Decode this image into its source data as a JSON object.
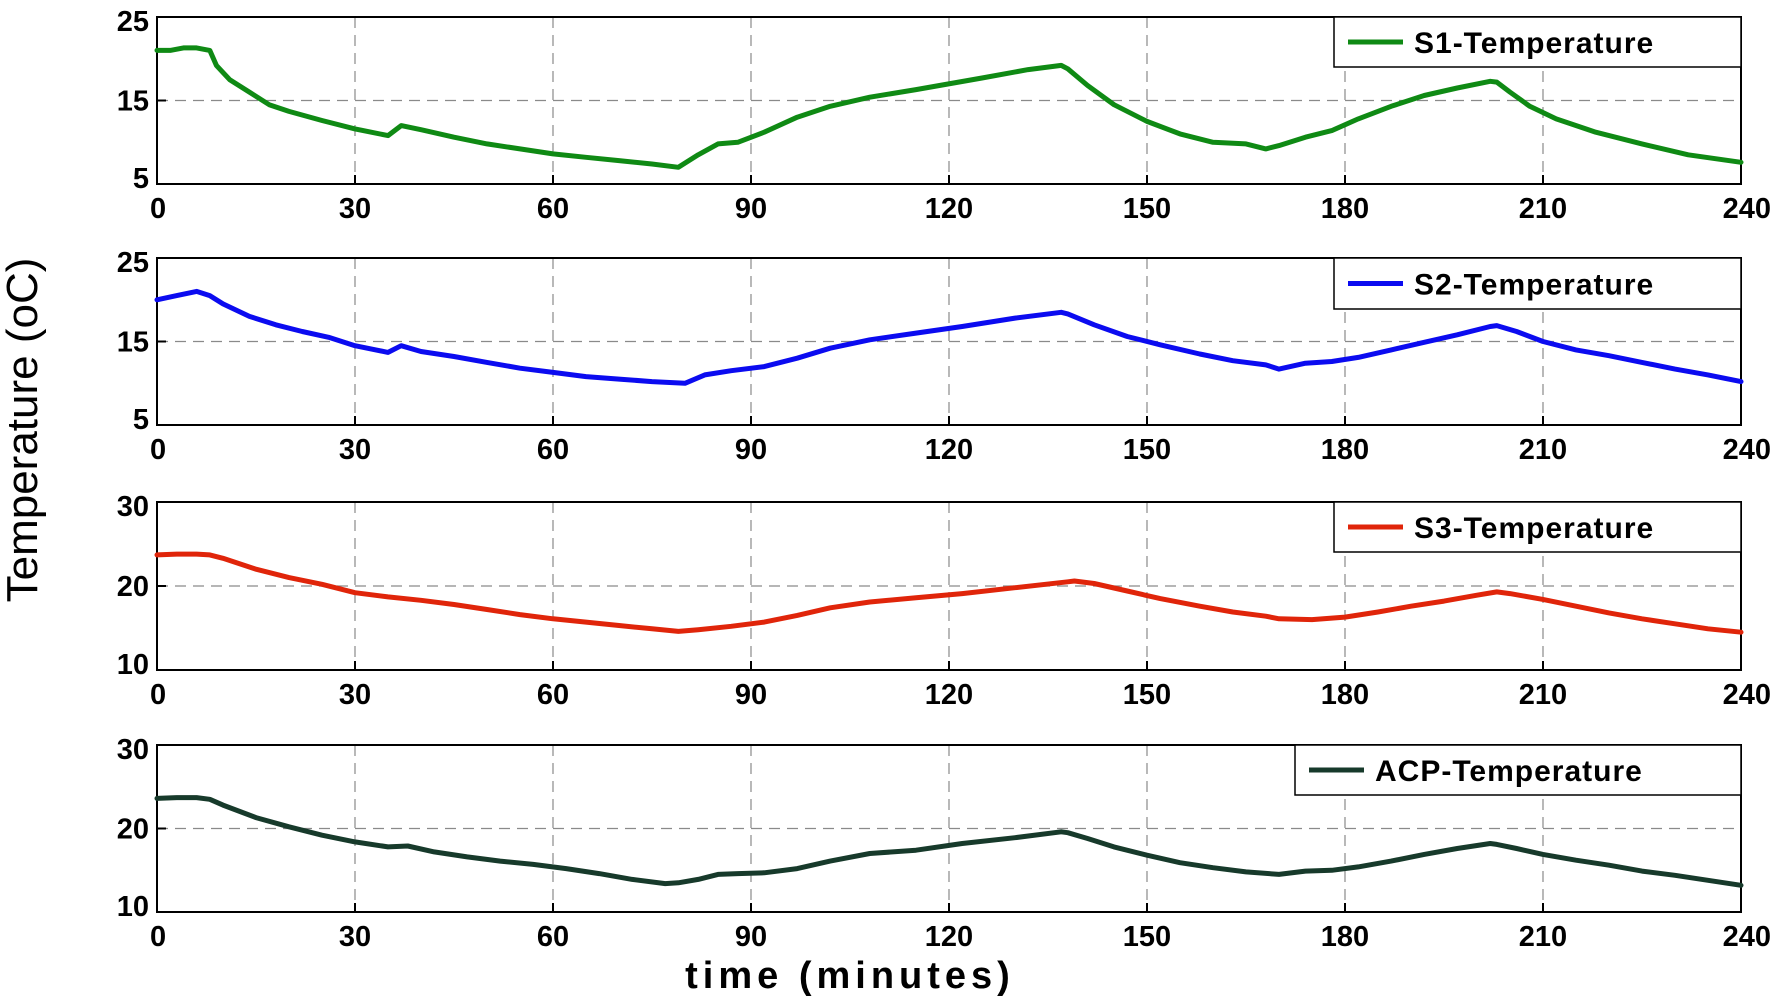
{
  "chart_data": {
    "type": "line",
    "xlabel": "time (minutes)",
    "ylabel": "Temperature (oC)",
    "shared_x_ticks": [
      0,
      30,
      60,
      90,
      120,
      150,
      180,
      210,
      240
    ],
    "panels": [
      {
        "legend": "S1-Temperature",
        "legend_position": "top-right",
        "color": "#0f8a14",
        "xlim": [
          0,
          240
        ],
        "ylim": [
          5,
          25
        ],
        "yticks": [
          5,
          15,
          25
        ],
        "grid": true,
        "series": [
          {
            "name": "S1-Temperature",
            "x": [
              0,
              2,
              4,
              6,
              8,
              9,
              11,
              14,
              17,
              20,
              25,
              30,
              35,
              37,
              40,
              45,
              50,
              55,
              60,
              65,
              70,
              75,
              79,
              82,
              85,
              88,
              92,
              97,
              102,
              108,
              115,
              125,
              132,
              137,
              138,
              141,
              145,
              150,
              155,
              160,
              165,
              168,
              170,
              174,
              178,
              182,
              187,
              192,
              197,
              202,
              203,
              205,
              208,
              212,
              218,
              225,
              232,
              240
            ],
            "y": [
              21,
              21,
              21.3,
              21.3,
              21,
              19.2,
              17.5,
              16,
              14.5,
              13.7,
              12.6,
              11.6,
              10.8,
              12,
              11.5,
              10.6,
              9.8,
              9.2,
              8.6,
              8.2,
              7.8,
              7.4,
              7,
              8.5,
              9.8,
              10,
              11.2,
              13,
              14.3,
              15.4,
              16.3,
              17.7,
              18.7,
              19.2,
              18.8,
              16.8,
              14.5,
              12.5,
              11,
              10,
              9.8,
              9.2,
              9.6,
              10.6,
              11.4,
              12.8,
              14.3,
              15.6,
              16.5,
              17.3,
              17.2,
              16,
              14.3,
              12.8,
              11.2,
              9.8,
              8.5,
              7.6
            ]
          }
        ]
      },
      {
        "legend": "S2-Temperature",
        "legend_position": "top-right",
        "color": "#0b0bf0",
        "xlim": [
          0,
          240
        ],
        "ylim": [
          5,
          25
        ],
        "yticks": [
          5,
          15,
          25
        ],
        "grid": true,
        "series": [
          {
            "name": "S2-Temperature",
            "x": [
              0,
              3,
              6,
              8,
              10,
              14,
              18,
              22,
              26,
              30,
              35,
              37,
              40,
              45,
              50,
              55,
              60,
              65,
              70,
              75,
              80,
              83,
              87,
              92,
              97,
              102,
              108,
              115,
              122,
              130,
              137,
              138,
              142,
              147,
              152,
              158,
              163,
              168,
              170,
              174,
              178,
              182,
              187,
              192,
              197,
              202,
              203,
              206,
              210,
              215,
              220,
              225,
              230,
              235,
              240
            ],
            "y": [
              20,
              20.5,
              21,
              20.5,
              19.5,
              18,
              17,
              16.2,
              15.5,
              14.5,
              13.7,
              14.5,
              13.8,
              13.2,
              12.5,
              11.8,
              11.3,
              10.8,
              10.5,
              10.2,
              10,
              11,
              11.5,
              12,
              13,
              14.2,
              15.2,
              16,
              16.8,
              17.8,
              18.5,
              18.3,
              17,
              15.6,
              14.6,
              13.5,
              12.7,
              12.2,
              11.7,
              12.4,
              12.6,
              13.1,
              14,
              14.9,
              15.8,
              16.8,
              16.9,
              16.2,
              15,
              14,
              13.3,
              12.5,
              11.7,
              11,
              10.2
            ]
          }
        ]
      },
      {
        "legend": "S3-Temperature",
        "legend_position": "top-right",
        "color": "#e0250a",
        "xlim": [
          0,
          240
        ],
        "ylim": [
          10,
          30
        ],
        "yticks": [
          10,
          20,
          30
        ],
        "grid": true,
        "series": [
          {
            "name": "S3-Temperature",
            "x": [
              0,
              3,
              6,
              8,
              10,
              15,
              20,
              25,
              30,
              35,
              40,
              45,
              50,
              55,
              60,
              65,
              70,
              75,
              79,
              82,
              87,
              92,
              97,
              102,
              108,
              115,
              122,
              130,
              138,
              139,
              142,
              147,
              152,
              158,
              163,
              168,
              170,
              175,
              180,
              185,
              190,
              195,
              200,
              203,
              205,
              210,
              215,
              220,
              225,
              230,
              235,
              240
            ],
            "y": [
              23.7,
              23.8,
              23.8,
              23.7,
              23.3,
              22,
              21,
              20.2,
              19.2,
              18.7,
              18.3,
              17.8,
              17.2,
              16.6,
              16.1,
              15.7,
              15.3,
              14.9,
              14.6,
              14.8,
              15.2,
              15.7,
              16.5,
              17.4,
              18.1,
              18.6,
              19.1,
              19.8,
              20.5,
              20.6,
              20.3,
              19.4,
              18.5,
              17.6,
              16.9,
              16.4,
              16.1,
              16,
              16.3,
              16.9,
              17.6,
              18.2,
              18.9,
              19.3,
              19.1,
              18.4,
              17.6,
              16.8,
              16.1,
              15.5,
              14.9,
              14.5
            ]
          }
        ]
      },
      {
        "legend": "ACP-Temperature",
        "legend_position": "top-right",
        "color": "#173a2b",
        "xlim": [
          0,
          240
        ],
        "ylim": [
          10,
          30
        ],
        "yticks": [
          10,
          20,
          30
        ],
        "grid": true,
        "series": [
          {
            "name": "ACP-Temperature",
            "x": [
              0,
              3,
              6,
              8,
              10,
              15,
              20,
              25,
              30,
              35,
              38,
              42,
              47,
              52,
              57,
              62,
              67,
              72,
              77,
              79,
              82,
              85,
              88,
              92,
              97,
              102,
              108,
              115,
              122,
              130,
              137,
              138,
              141,
              145,
              150,
              155,
              160,
              165,
              170,
              174,
              178,
              182,
              187,
              192,
              197,
              202,
              203,
              206,
              210,
              215,
              220,
              225,
              230,
              235,
              240
            ],
            "y": [
              23.6,
              23.7,
              23.7,
              23.5,
              22.8,
              21.3,
              20.2,
              19.2,
              18.4,
              17.8,
              17.9,
              17.2,
              16.6,
              16.1,
              15.7,
              15.2,
              14.6,
              13.9,
              13.4,
              13.5,
              13.9,
              14.5,
              14.6,
              14.7,
              15.2,
              16.1,
              17,
              17.4,
              18.2,
              18.9,
              19.6,
              19.5,
              18.8,
              17.8,
              16.8,
              15.9,
              15.3,
              14.8,
              14.5,
              14.9,
              15,
              15.4,
              16.1,
              16.9,
              17.6,
              18.2,
              18.1,
              17.6,
              16.9,
              16.2,
              15.6,
              14.9,
              14.4,
              13.8,
              13.2
            ]
          }
        ]
      }
    ]
  }
}
